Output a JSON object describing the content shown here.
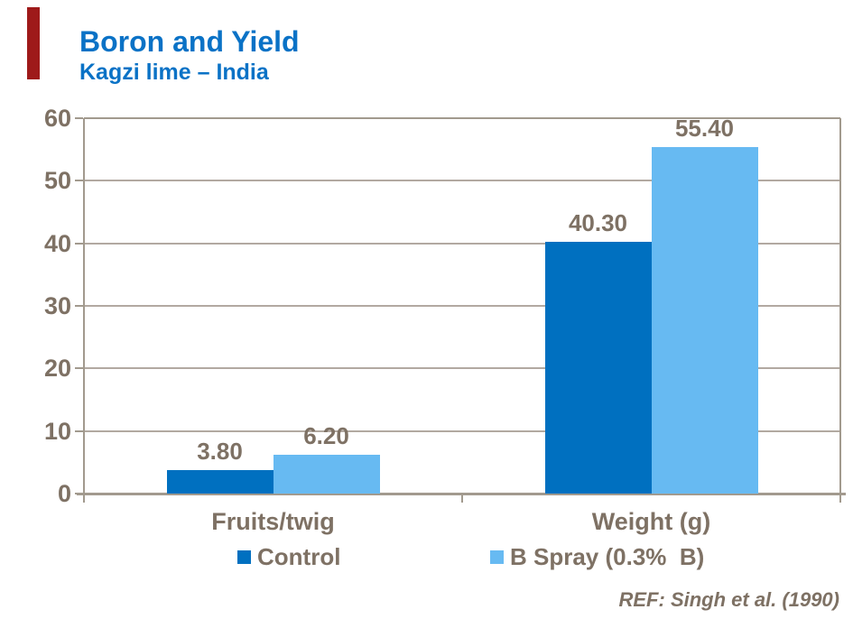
{
  "slide": {
    "title": "Boron and Yield",
    "subtitle": "Kagzi lime – India",
    "reference": "REF: Singh et al. (1990)"
  },
  "colors": {
    "title_blue": "#0A72C6",
    "control_blue": "#0070C0",
    "spray_blue": "#67BAF2",
    "label_brown": "#7E7164",
    "gridline": "#B2A9A1",
    "axis_line": "#A29A8E",
    "accent_red": "#9E1A1A"
  },
  "chart_data": {
    "type": "bar",
    "categories": [
      "Fruits/twig",
      "Weight (g)"
    ],
    "series": [
      {
        "name": "Control",
        "values": [
          3.8,
          40.3
        ],
        "labels": [
          "3.80",
          "40.30"
        ],
        "color_key": "control_blue"
      },
      {
        "name": "B Spray (0.3%  B)",
        "values": [
          6.2,
          55.4
        ],
        "labels": [
          "6.20",
          "55.40"
        ],
        "color_key": "spray_blue"
      }
    ],
    "ylim": [
      0,
      60
    ],
    "yticks": [
      0,
      10,
      20,
      30,
      40,
      50,
      60
    ],
    "grid": true,
    "legend_position": "bottom",
    "xlabel": "",
    "ylabel": ""
  }
}
